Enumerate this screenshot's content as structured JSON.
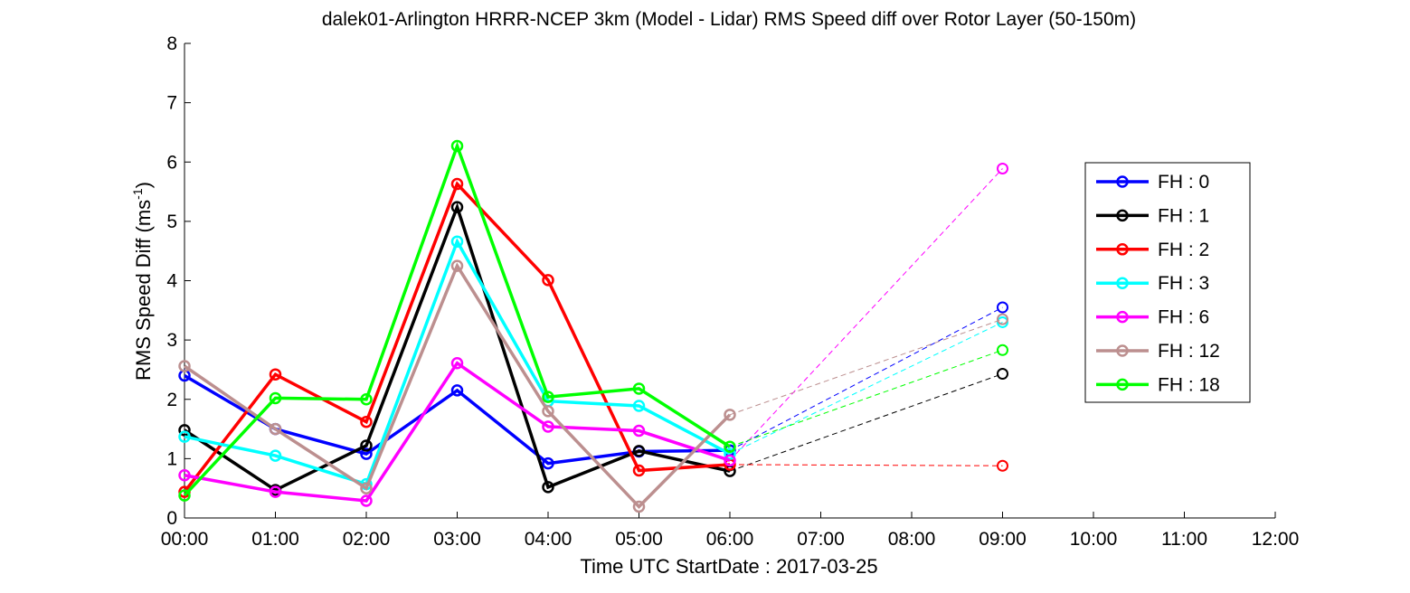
{
  "chart_data": {
    "type": "line",
    "title": "dalek01-Arlington HRRR-NCEP 3km (Model - Lidar) RMS Speed diff over Rotor Layer (50-150m)",
    "xlabel": "Time UTC    StartDate : 2017-03-25",
    "ylabel_main": "RMS Speed Diff (ms",
    "ylabel_sup": "-1",
    "ylabel_end": ")",
    "xlim": [
      0,
      12
    ],
    "ylim": [
      0,
      8
    ],
    "x_ticks": [
      0,
      1,
      2,
      3,
      4,
      5,
      6,
      7,
      8,
      9,
      10,
      11,
      12
    ],
    "x_tick_labels": [
      "00:00",
      "01:00",
      "02:00",
      "03:00",
      "04:00",
      "05:00",
      "06:00",
      "07:00",
      "08:00",
      "09:00",
      "10:00",
      "11:00",
      "12:00"
    ],
    "y_ticks": [
      0,
      1,
      2,
      3,
      4,
      5,
      6,
      7,
      8
    ],
    "y_tick_labels": [
      "0",
      "1",
      "2",
      "3",
      "4",
      "5",
      "6",
      "7",
      "8"
    ],
    "grid": false,
    "legend_position": "right",
    "x": [
      0,
      1,
      2,
      3,
      4,
      5,
      6
    ],
    "forecast_x": 9,
    "series": [
      {
        "name": "FH : 0",
        "color": "#0000ff",
        "values": [
          2.4,
          1.5,
          1.08,
          2.15,
          0.92,
          1.12,
          1.14
        ],
        "forecast_value": 3.55
      },
      {
        "name": "FH : 1",
        "color": "#000000",
        "values": [
          1.48,
          0.47,
          1.22,
          5.24,
          0.52,
          1.13,
          0.79
        ],
        "forecast_value": 2.43
      },
      {
        "name": "FH : 2",
        "color": "#ff0000",
        "values": [
          0.44,
          2.42,
          1.62,
          5.63,
          4.01,
          0.8,
          0.9
        ],
        "forecast_value": 0.88
      },
      {
        "name": "FH : 3",
        "color": "#00ffff",
        "values": [
          1.37,
          1.05,
          0.57,
          4.66,
          1.97,
          1.89,
          1.08
        ],
        "forecast_value": 3.3
      },
      {
        "name": "FH : 6",
        "color": "#ff00ff",
        "values": [
          0.72,
          0.44,
          0.29,
          2.61,
          1.54,
          1.47,
          0.97
        ],
        "forecast_value": 5.89
      },
      {
        "name": "FH : 12",
        "color": "#bc8f8f",
        "values": [
          2.56,
          1.5,
          0.5,
          4.25,
          1.8,
          0.19,
          1.74
        ],
        "forecast_value": 3.35
      },
      {
        "name": "FH : 18",
        "color": "#00ff00",
        "values": [
          0.38,
          2.02,
          2.0,
          6.27,
          2.04,
          2.18,
          1.2
        ],
        "forecast_value": 2.83
      }
    ]
  }
}
